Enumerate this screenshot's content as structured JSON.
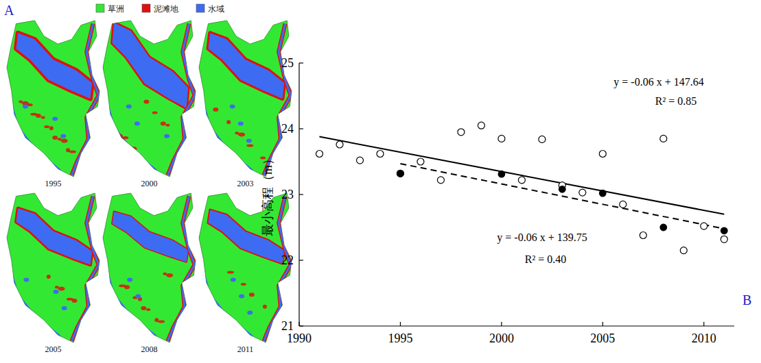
{
  "panel_letters": {
    "a": "A",
    "b": "B"
  },
  "panel_a": {
    "legend": [
      {
        "label": "草洲",
        "color": "#33e833"
      },
      {
        "label": "泥滩地",
        "color": "#e01010"
      },
      {
        "label": "水域",
        "color": "#3d6cf2"
      }
    ],
    "maps": [
      {
        "year": "1995"
      },
      {
        "year": "2000"
      },
      {
        "year": "2003"
      },
      {
        "year": "2005"
      },
      {
        "year": "2008"
      },
      {
        "year": "2011"
      }
    ]
  },
  "chart_data": {
    "type": "scatter",
    "y_label": "最小高程（m）",
    "xlim": [
      1990,
      2011.5
    ],
    "xticks": [
      1990,
      1995,
      2000,
      2005,
      2010
    ],
    "ylim": [
      21,
      25
    ],
    "yticks": [
      21,
      22,
      23,
      24,
      25
    ],
    "grid": false,
    "series": [
      {
        "type": "scatter",
        "marker": "open_circle",
        "color": "#000000",
        "x": [
          1991,
          1992,
          1993,
          1994,
          1995,
          1996,
          1997,
          1998,
          1999,
          2000,
          2001,
          2002,
          2003,
          2004,
          2005,
          2006,
          2007,
          2008,
          2009,
          2010,
          2011
        ],
        "values": [
          23.62,
          23.76,
          23.52,
          23.62,
          23.32,
          23.5,
          23.22,
          23.95,
          24.05,
          23.85,
          23.22,
          23.84,
          23.14,
          23.03,
          23.62,
          22.85,
          22.38,
          23.85,
          22.15,
          22.52,
          22.32
        ]
      },
      {
        "type": "scatter",
        "marker": "filled_circle",
        "color": "#000000",
        "x": [
          1995,
          2000,
          2003,
          2005,
          2008,
          2011
        ],
        "values": [
          23.32,
          23.31,
          23.08,
          23.02,
          22.5,
          22.45
        ]
      },
      {
        "type": "line",
        "line_style": "solid",
        "color": "#000000",
        "x": [
          1991,
          2011
        ],
        "values": [
          23.88,
          22.7
        ]
      },
      {
        "type": "line",
        "line_style": "dashed",
        "color": "#000000",
        "x": [
          1995,
          2011
        ],
        "values": [
          23.47,
          22.48
        ]
      }
    ],
    "annotations": [
      "y = -0.06 x + 147.64",
      "R² = 0.85",
      "y = -0.06 x + 139.75",
      "R² = 0.40"
    ]
  }
}
